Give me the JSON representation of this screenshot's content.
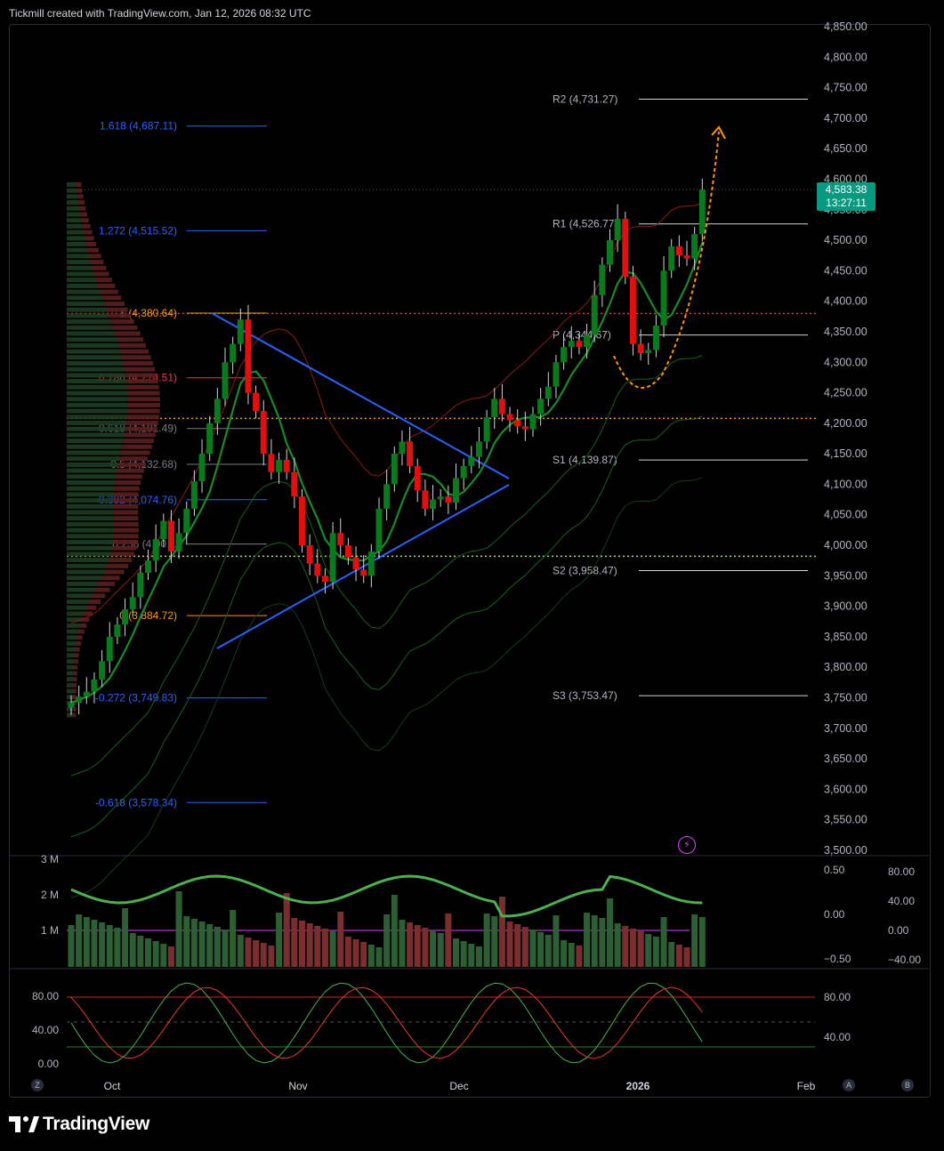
{
  "header": {
    "text": "Tickmill created with TradingView.com, Jan 12, 2026 08:32 UTC"
  },
  "brand": {
    "name": "TradingView"
  },
  "badge": {
    "price": "4,583.38",
    "countdown": "13:27:11"
  },
  "nav": {
    "zoom_label": "Z",
    "btn_a": "A",
    "btn_b": "B"
  },
  "colors": {
    "bull": "#0b7a1e",
    "bear": "#e01010",
    "fib_blue": "#2962ff",
    "fib_red": "#f23645",
    "fib_orange": "#ff9800",
    "fib_gray": "#787b86",
    "ema_red": "#b71c1c",
    "ema_green": "#1b8a2a",
    "volume_up": "#2e5e33",
    "volume_down": "#7a2e2e",
    "osc_line": "#4caf50",
    "badge": "#089981"
  },
  "chart_data": [
    {
      "type": "candlestick",
      "name": "Main price chart",
      "y_axis": {
        "ticks": [
          "4,850.00",
          "4,800.00",
          "4,750.00",
          "4,700.00",
          "4,650.00",
          "4,600.00",
          "4,550.00",
          "4,500.00",
          "4,450.00",
          "4,400.00",
          "4,350.00",
          "4,300.00",
          "4,250.00",
          "4,200.00",
          "4,150.00",
          "4,100.00",
          "4,050.00",
          "4,000.00",
          "3,950.00",
          "3,900.00",
          "3,850.00",
          "3,800.00",
          "3,750.00",
          "3,700.00",
          "3,650.00",
          "3,600.00",
          "3,550.00",
          "3,500.00"
        ],
        "range": [
          3500,
          4850
        ]
      },
      "x_axis": {
        "ticks": [
          "Oct",
          "Nov",
          "Dec",
          "2026",
          "Feb"
        ]
      },
      "last_price": 4583.38,
      "closes": [
        3742,
        3752,
        3760,
        3780,
        3810,
        3850,
        3870,
        3895,
        3915,
        3955,
        3975,
        4010,
        4040,
        3990,
        4020,
        4060,
        4105,
        4150,
        4200,
        4240,
        4300,
        4330,
        4370,
        4250,
        4220,
        4150,
        4120,
        4140,
        4120,
        4080,
        4000,
        3970,
        3950,
        3940,
        4020,
        4000,
        3980,
        3960,
        3950,
        3990,
        4060,
        4100,
        4150,
        4170,
        4130,
        4090,
        4060,
        4075,
        4080,
        4070,
        4110,
        4130,
        4145,
        4170,
        4210,
        4240,
        4215,
        4205,
        4195,
        4190,
        4215,
        4240,
        4260,
        4300,
        4325,
        4335,
        4325,
        4345,
        4410,
        4460,
        4500,
        4535,
        4440,
        4330,
        4315,
        4320,
        4360,
        4450,
        4490,
        4475,
        4470,
        4510,
        4583
      ],
      "pivots": [
        {
          "label": "R2 (4,731.27)",
          "value": 4731.27
        },
        {
          "label": "R1 (4,526.77)",
          "value": 4526.77
        },
        {
          "label": "P (4,344.67)",
          "value": 4344.67
        },
        {
          "label": "S1 (4,139.87)",
          "value": 4139.87
        },
        {
          "label": "S2 (3,958.47)",
          "value": 3958.47
        },
        {
          "label": "S3 (3,753.47)",
          "value": 3753.47
        }
      ],
      "fib_levels": [
        {
          "label": "1.618 (4,687.11)",
          "value": 4687.11,
          "color": "#2962ff"
        },
        {
          "label": "1.272 (4,515.52)",
          "value": 4515.52,
          "color": "#2962ff"
        },
        {
          "label": "1 (4,380.64)",
          "value": 4380.64,
          "color": "#ff9800"
        },
        {
          "label": "0.786 (4,274.51)",
          "value": 4274.51,
          "color": "#f23645"
        },
        {
          "label": "0.618 (4,191.49)",
          "value": 4191.49,
          "color": "#787b86"
        },
        {
          "label": "0.5 (4,132.68)",
          "value": 4132.68,
          "color": "#787b86"
        },
        {
          "label": "0.382 (4,074.76)",
          "value": 4074.76,
          "color": "#2962ff"
        },
        {
          "label": "0.236 (4,00…",
          "value": 4002,
          "color": "#787b86"
        },
        {
          "label": "0 (3,884.72)",
          "value": 3884.72,
          "color": "#ff9800"
        },
        {
          "label": "-0.272 (3,749.83)",
          "value": 3749.83,
          "color": "#2962ff"
        },
        {
          "label": "-0.618 (3,578.34)",
          "value": 3578.34,
          "color": "#2962ff"
        }
      ],
      "horizontal_lines": [
        {
          "value": 4380,
          "color": "#f23645",
          "style": "dotted"
        },
        {
          "value": 4208,
          "color": "#ff9800",
          "style": "dotted"
        },
        {
          "value": 3982,
          "color": "#b5e04a",
          "style": "dotted"
        }
      ]
    },
    {
      "type": "bar",
      "name": "Volume with oscillator",
      "y_axis_left": {
        "ticks": [
          "3 M",
          "2 M",
          "1 M"
        ]
      },
      "y_axis_right": {
        "ticks": [
          "0.50",
          "0.00",
          "−0.50"
        ]
      },
      "y_axis_right2": {
        "ticks": [
          "80.00",
          "40.00",
          "0.00",
          "−40.00"
        ]
      }
    },
    {
      "type": "line",
      "name": "Stochastic oscillator",
      "y_axis_left": {
        "ticks": [
          "80.00",
          "40.00",
          "0.00"
        ]
      },
      "y_axis_right": {
        "ticks": [
          "80.00",
          "40.00"
        ]
      }
    }
  ]
}
